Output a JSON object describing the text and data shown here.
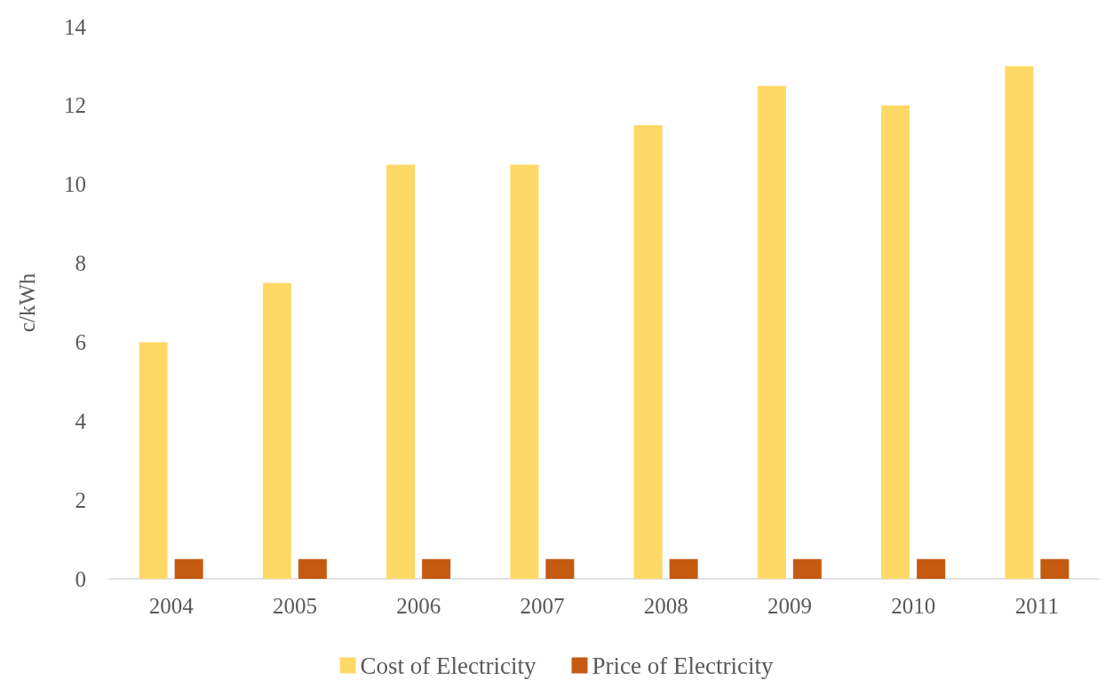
{
  "chart_data": {
    "type": "bar",
    "ylabel": "c/kWh",
    "categories": [
      "2004",
      "2005",
      "2006",
      "2007",
      "2008",
      "2009",
      "2010",
      "2011"
    ],
    "series": [
      {
        "name": "Cost of Electricity",
        "color": "#ffd966",
        "values": [
          6,
          7.5,
          10.5,
          10.5,
          11.5,
          12.5,
          12,
          13
        ]
      },
      {
        "name": "Price of Electricity",
        "color": "#c55a11",
        "values": [
          0.5,
          0.5,
          0.5,
          0.5,
          0.5,
          0.5,
          0.5,
          0.5
        ]
      }
    ],
    "ylim": [
      0,
      14
    ],
    "yticks": [
      0,
      2,
      4,
      6,
      8,
      10,
      12,
      14
    ],
    "grid": false,
    "legend": "bottom"
  }
}
